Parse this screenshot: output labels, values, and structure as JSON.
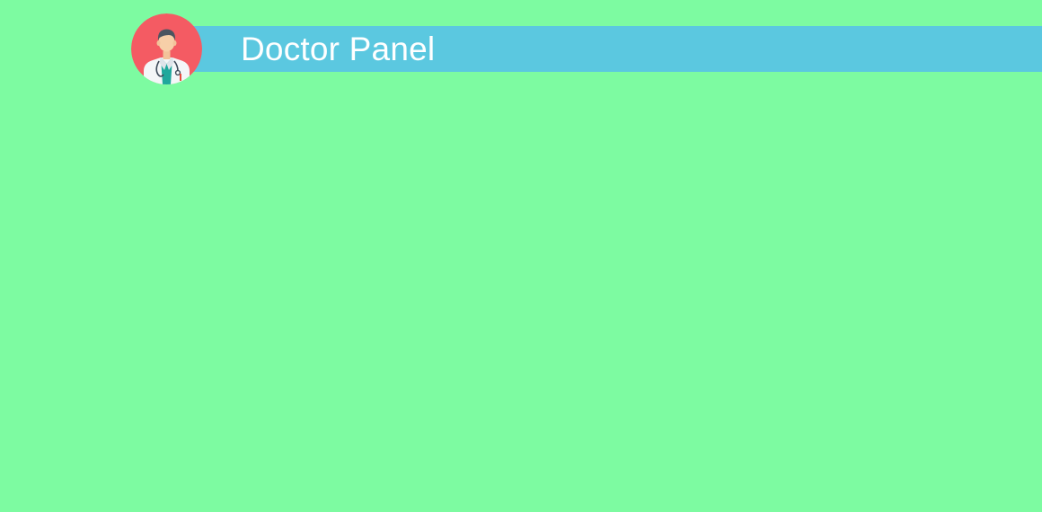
{
  "header": {
    "title": "Doctor Panel",
    "avatar_icon": "doctor-avatar-icon"
  },
  "colors": {
    "page_background": "#7dfba1",
    "header_bar": "#5bc8e0",
    "header_text": "#ffffff",
    "avatar_background": "#f45b63"
  }
}
